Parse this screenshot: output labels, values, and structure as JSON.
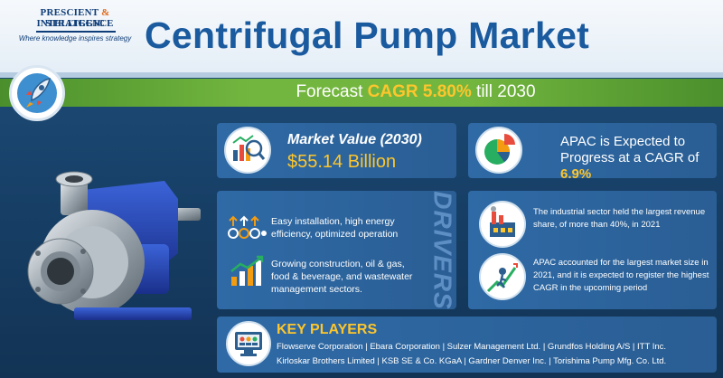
{
  "brand": {
    "name_line1": "PRESCIENT",
    "ampersand": "&",
    "name_line1b": "STRATEGIC",
    "name_line2": "INTELLIGENCE",
    "tagline": "Where knowledge inspires strategy"
  },
  "title": "Centrifugal Pump Market",
  "forecast": {
    "prefix": "Forecast",
    "cagr_label": "CAGR 5.80%",
    "suffix": "till 2030"
  },
  "market_value": {
    "label": "Market Value (2030)",
    "value": "$55.14 Billion"
  },
  "apac": {
    "text_a": "APAC is Expected to Progress at a CAGR of",
    "rate": "6.9%"
  },
  "drivers": {
    "heading": "DRIVERS",
    "items": [
      "Easy installation, high energy efficiency, optimized operation",
      "Growing construction, oil & gas, food & beverage, and wastewater management sectors."
    ]
  },
  "insights": [
    "The industrial sector held the largest revenue share, of more than 40%, in 2021",
    "APAC accounted for the largest market size in 2021, and it is expected to register the highest CAGR in the upcoming period"
  ],
  "key_players": {
    "heading": "KEY PLAYERS",
    "line1": "Flowserve Corporation | Ebara Corporation | Sulzer Management Ltd. | Grundfos Holding A/S | ITT Inc.",
    "line2": "Kirloskar Brothers Limited | KSB SE & Co. KGaA | Gardner Denver Inc. | Torishima Pump Mfg. Co. Ltd."
  },
  "colors": {
    "accent_yellow": "#fdc62c",
    "title_blue": "#1a5a9e",
    "banner_green": "#73b63f",
    "card_blue": "#2f6aa6"
  },
  "icons": [
    "rocket-icon",
    "market-value-icon",
    "pie-chart-icon",
    "installation-icon",
    "growth-chart-icon",
    "factory-icon",
    "climber-icon",
    "key-players-icon",
    "centrifugal-pump-image"
  ]
}
